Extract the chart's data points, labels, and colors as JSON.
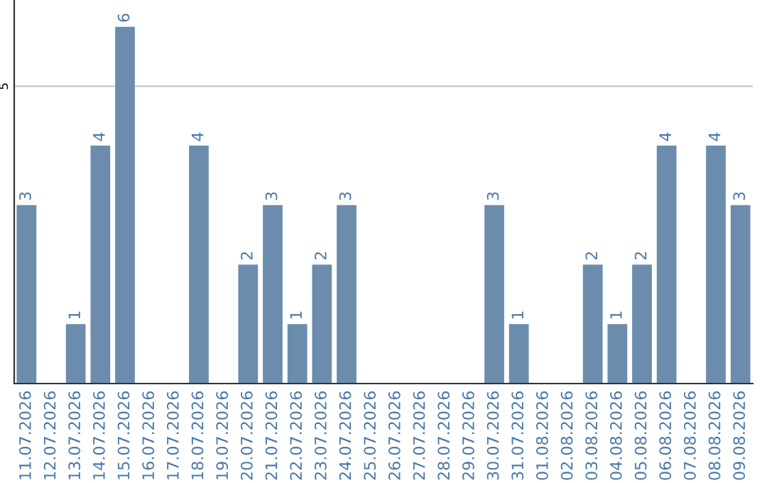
{
  "chart_data": {
    "type": "bar",
    "categories": [
      "11.07.2026",
      "12.07.2026",
      "13.07.2026",
      "14.07.2026",
      "15.07.2026",
      "16.07.2026",
      "17.07.2026",
      "18.07.2026",
      "19.07.2026",
      "20.07.2026",
      "21.07.2026",
      "22.07.2026",
      "23.07.2026",
      "24.07.2026",
      "25.07.2026",
      "26.07.2026",
      "27.07.2026",
      "28.07.2026",
      "29.07.2026",
      "30.07.2026",
      "31.07.2026",
      "01.08.2026",
      "02.08.2026",
      "03.08.2026",
      "04.08.2026",
      "05.08.2026",
      "06.08.2026",
      "07.08.2026",
      "08.08.2026",
      "09.08.2026"
    ],
    "values": [
      3,
      0,
      1,
      4,
      6,
      0,
      0,
      4,
      0,
      2,
      3,
      1,
      2,
      3,
      0,
      0,
      0,
      0,
      0,
      3,
      1,
      0,
      0,
      2,
      1,
      2,
      4,
      0,
      4,
      3
    ],
    "value_labels": [
      "3",
      null,
      "1",
      "4",
      "6",
      null,
      null,
      "4",
      null,
      "2",
      "3",
      "1",
      "2",
      "3",
      null,
      null,
      null,
      null,
      null,
      "3",
      "1",
      null,
      null,
      "2",
      "1",
      "2",
      "4",
      null,
      "4",
      "3"
    ],
    "color": "#6b8cad",
    "ylim": [
      0,
      6.45
    ],
    "yticks": [
      5
    ],
    "grid": "y"
  }
}
